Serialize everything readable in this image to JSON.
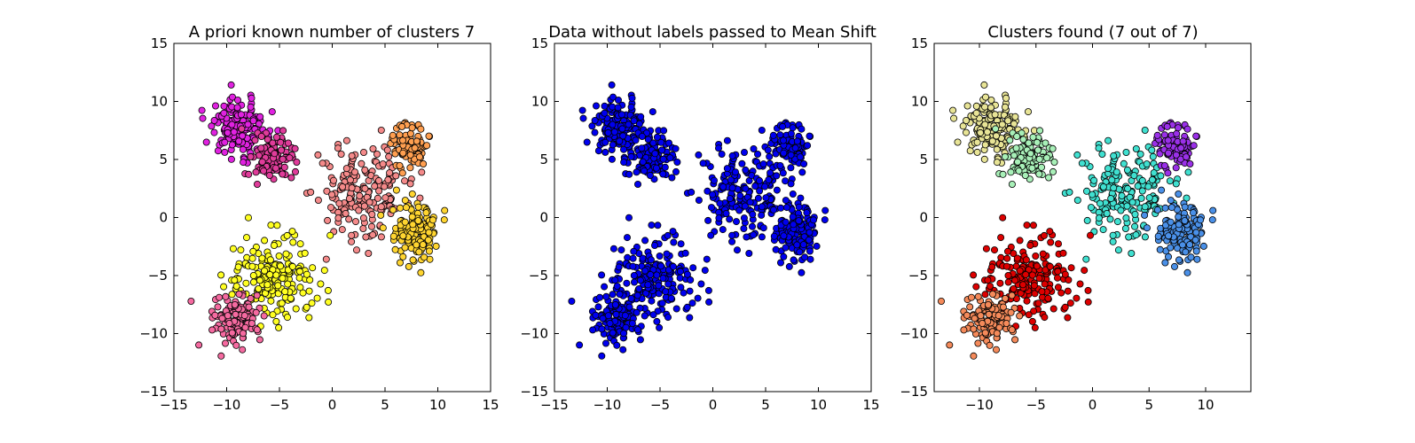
{
  "chart_data": [
    {
      "type": "scatter",
      "title": "A priori known number of clusters 7",
      "xlim": [
        -15,
        15
      ],
      "ylim": [
        -15,
        15
      ],
      "xticks": [
        -15,
        -10,
        -5,
        0,
        5,
        10,
        15
      ],
      "yticks": [
        -15,
        -10,
        -5,
        0,
        5,
        10,
        15
      ],
      "grid": false,
      "series": [
        {
          "color": "#e022e0",
          "center": [
            -8.8,
            7.8
          ],
          "spread": [
            1.4,
            1.2
          ],
          "count": 160
        },
        {
          "color": "#e03c9a",
          "center": [
            -5.8,
            5.0
          ],
          "spread": [
            1.0,
            1.0
          ],
          "count": 110
        },
        {
          "color": "#f48a8a",
          "center": [
            3.0,
            2.0
          ],
          "spread": [
            2.2,
            2.2
          ],
          "count": 190
        },
        {
          "color": "#ff9f50",
          "center": [
            7.3,
            6.2
          ],
          "spread": [
            0.9,
            0.9
          ],
          "count": 100
        },
        {
          "color": "#ffd530",
          "center": [
            7.8,
            -1.3
          ],
          "spread": [
            1.2,
            1.2
          ],
          "count": 140
        },
        {
          "color": "#ffff22",
          "center": [
            -5.8,
            -5.2
          ],
          "spread": [
            1.9,
            1.8
          ],
          "count": 190
        },
        {
          "color": "#f56aa0",
          "center": [
            -9.3,
            -8.8
          ],
          "spread": [
            1.2,
            1.2
          ],
          "count": 130
        }
      ]
    },
    {
      "type": "scatter",
      "title": "Data without labels passed to Mean Shift",
      "xlim": [
        -15,
        15
      ],
      "ylim": [
        -15,
        15
      ],
      "xticks": [
        -15,
        -10,
        -5,
        0,
        5,
        10,
        15
      ],
      "yticks": [
        -15,
        -10,
        -5,
        0,
        5,
        10,
        15
      ],
      "grid": false,
      "series": [
        {
          "color": "#0000ee",
          "center": [
            -8.8,
            7.8
          ],
          "spread": [
            1.4,
            1.2
          ],
          "count": 160
        },
        {
          "color": "#0000ee",
          "center": [
            -5.8,
            5.0
          ],
          "spread": [
            1.0,
            1.0
          ],
          "count": 110
        },
        {
          "color": "#0000ee",
          "center": [
            3.0,
            2.0
          ],
          "spread": [
            2.2,
            2.2
          ],
          "count": 190
        },
        {
          "color": "#0000ee",
          "center": [
            7.3,
            6.2
          ],
          "spread": [
            0.9,
            0.9
          ],
          "count": 100
        },
        {
          "color": "#0000ee",
          "center": [
            7.8,
            -1.3
          ],
          "spread": [
            1.2,
            1.2
          ],
          "count": 140
        },
        {
          "color": "#0000ee",
          "center": [
            -5.8,
            -5.2
          ],
          "spread": [
            1.9,
            1.8
          ],
          "count": 190
        },
        {
          "color": "#0000ee",
          "center": [
            -9.3,
            -8.8
          ],
          "spread": [
            1.2,
            1.2
          ],
          "count": 130
        }
      ]
    },
    {
      "type": "scatter",
      "title": "Clusters found (7 out of 7)",
      "xlim": [
        -14,
        14
      ],
      "ylim": [
        -15,
        15
      ],
      "xticks": [
        -10,
        -5,
        0,
        5,
        10
      ],
      "yticks": [
        -15,
        -10,
        -5,
        0,
        5,
        10,
        15
      ],
      "grid": false,
      "series": [
        {
          "color": "#e8e496",
          "center": [
            -8.8,
            7.8
          ],
          "spread": [
            1.4,
            1.2
          ],
          "count": 160
        },
        {
          "color": "#a8f0b8",
          "center": [
            -5.8,
            5.0
          ],
          "spread": [
            1.0,
            1.0
          ],
          "count": 110
        },
        {
          "color": "#40e0d0",
          "center": [
            3.0,
            2.0
          ],
          "spread": [
            2.2,
            2.2
          ],
          "count": 190
        },
        {
          "color": "#9a30e8",
          "center": [
            7.3,
            6.2
          ],
          "spread": [
            0.9,
            0.9
          ],
          "count": 100
        },
        {
          "color": "#4a90e8",
          "center": [
            7.8,
            -1.3
          ],
          "spread": [
            1.2,
            1.2
          ],
          "count": 140
        },
        {
          "color": "#dd0000",
          "center": [
            -5.8,
            -5.2
          ],
          "spread": [
            1.9,
            1.8
          ],
          "count": 190
        },
        {
          "color": "#f58a5a",
          "center": [
            -9.3,
            -8.8
          ],
          "spread": [
            1.2,
            1.2
          ],
          "count": 130
        }
      ]
    }
  ]
}
